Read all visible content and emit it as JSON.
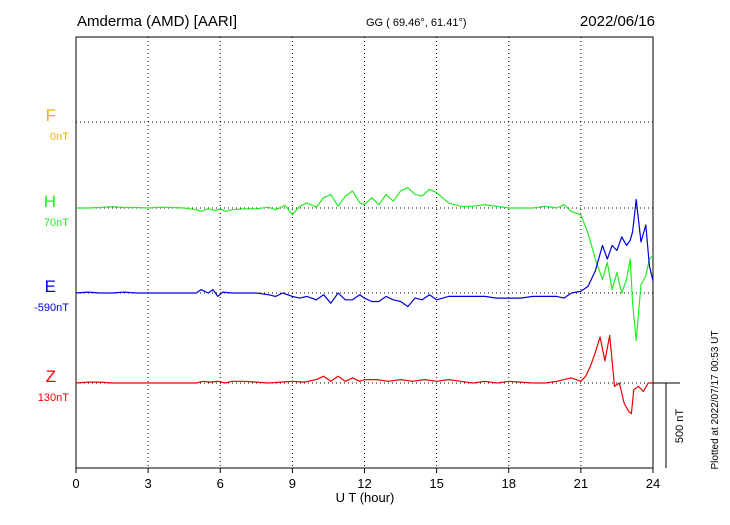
{
  "header": {
    "station": "Amderma (AMD)  [AARI]",
    "coords": "GG ( 69.46°,  61.41°)",
    "date": "2022/06/16"
  },
  "footer": {
    "plotted": "Plotted at 2022/07/17 00:53 UT"
  },
  "colors": {
    "F": "#f0b400",
    "H": "#22ee22",
    "E": "#0000dd",
    "Z": "#ee0000",
    "axis": "#000000"
  },
  "chart_data": {
    "type": "line",
    "xlabel": "U T (hour)",
    "xlim": [
      0,
      24
    ],
    "xticks": [
      0,
      3,
      6,
      9,
      12,
      15,
      18,
      21,
      24
    ],
    "grid": true,
    "scale_bar": {
      "label": "500 nT",
      "value_nT": 500
    },
    "channels": [
      {
        "name": "F",
        "baseline_label": "0nT",
        "color": "#f0b400"
      },
      {
        "name": "H",
        "baseline_label": "70nT",
        "color": "#22ee22"
      },
      {
        "name": "E",
        "baseline_label": "-590nT",
        "color": "#0000dd"
      },
      {
        "name": "Z",
        "baseline_label": "130nT",
        "color": "#ee0000"
      }
    ],
    "series": [
      {
        "name": "H",
        "color": "#22ee22",
        "x": [
          0,
          0.5,
          1,
          1.5,
          2,
          2.5,
          3,
          3.5,
          4,
          4.5,
          5,
          5.2,
          5.5,
          5.8,
          6,
          6.2,
          6.5,
          7,
          7.5,
          8,
          8.3,
          8.7,
          9,
          9.3,
          9.6,
          10,
          10.3,
          10.6,
          10.9,
          11.2,
          11.5,
          11.8,
          12,
          12.3,
          12.6,
          12.9,
          13.2,
          13.5,
          13.8,
          14.1,
          14.4,
          14.7,
          15,
          15.5,
          16,
          16.5,
          17,
          17.5,
          18,
          18.5,
          19,
          19.5,
          20,
          20.3,
          20.6,
          21,
          21.3,
          21.6,
          21.9,
          22.1,
          22.3,
          22.5,
          22.7,
          22.9,
          23.05,
          23.15,
          23.3,
          23.5,
          23.7,
          23.85,
          24
        ],
        "values": [
          0,
          0,
          3,
          8,
          3,
          3,
          0,
          5,
          3,
          0,
          -10,
          -20,
          -5,
          -15,
          -5,
          -20,
          -10,
          -5,
          -5,
          5,
          -10,
          15,
          -40,
          10,
          30,
          5,
          60,
          80,
          10,
          70,
          100,
          30,
          20,
          60,
          20,
          80,
          40,
          100,
          120,
          80,
          70,
          110,
          90,
          30,
          10,
          10,
          20,
          10,
          0,
          0,
          0,
          10,
          0,
          20,
          -20,
          -40,
          -150,
          -300,
          -420,
          -320,
          -480,
          -380,
          -500,
          -420,
          -300,
          -560,
          -780,
          -450,
          -400,
          -300,
          -280
        ]
      },
      {
        "name": "E",
        "color": "#0000dd",
        "x": [
          0,
          0.5,
          1,
          1.5,
          2,
          2.5,
          3,
          3.5,
          4,
          4.5,
          5,
          5.2,
          5.5,
          5.7,
          5.9,
          6.1,
          6.5,
          7,
          7.5,
          8,
          8.3,
          8.6,
          9,
          9.3,
          9.6,
          10,
          10.3,
          10.6,
          10.9,
          11.2,
          11.5,
          11.8,
          12,
          12.3,
          12.6,
          12.9,
          13.2,
          13.5,
          13.8,
          14.1,
          14.4,
          14.7,
          15,
          15.5,
          16,
          16.5,
          17,
          17.5,
          18,
          18.5,
          19,
          19.5,
          20,
          20.3,
          20.6,
          21,
          21.3,
          21.6,
          21.9,
          22.1,
          22.3,
          22.5,
          22.7,
          22.9,
          23.05,
          23.15,
          23.3,
          23.5,
          23.7,
          23.85,
          24
        ],
        "values": [
          0,
          5,
          0,
          0,
          5,
          0,
          0,
          0,
          0,
          0,
          0,
          20,
          0,
          20,
          -20,
          5,
          0,
          0,
          0,
          -10,
          -20,
          0,
          -20,
          -30,
          -20,
          -40,
          -10,
          -60,
          0,
          -40,
          -40,
          -10,
          -30,
          -50,
          -50,
          -20,
          -40,
          -50,
          -80,
          -30,
          -40,
          -10,
          -40,
          -20,
          -20,
          -20,
          -20,
          -30,
          -30,
          -30,
          -20,
          -20,
          -20,
          -30,
          0,
          10,
          40,
          130,
          280,
          200,
          280,
          250,
          330,
          280,
          310,
          360,
          550,
          300,
          400,
          160,
          70
        ]
      },
      {
        "name": "Z",
        "color": "#ee0000",
        "x": [
          0,
          0.5,
          1,
          1.5,
          2,
          2.5,
          3,
          3.5,
          4,
          4.5,
          5,
          5.3,
          5.6,
          5.9,
          6.2,
          6.5,
          7,
          7.5,
          8,
          8.5,
          9,
          9.5,
          10,
          10.3,
          10.6,
          10.9,
          11.2,
          11.5,
          11.8,
          12,
          12.5,
          13,
          13.5,
          14,
          14.5,
          15,
          15.5,
          16,
          16.5,
          17,
          17.5,
          18,
          18.5,
          19,
          19.5,
          20,
          20.3,
          20.6,
          21,
          21.2,
          21.4,
          21.6,
          21.8,
          22,
          22.2,
          22.4,
          22.6,
          22.8,
          23,
          23.1,
          23.2,
          23.4,
          23.6,
          23.8,
          24
        ],
        "values": [
          0,
          5,
          5,
          0,
          0,
          0,
          0,
          0,
          0,
          0,
          0,
          10,
          5,
          10,
          0,
          10,
          10,
          5,
          0,
          5,
          10,
          5,
          20,
          40,
          10,
          40,
          10,
          30,
          10,
          20,
          20,
          10,
          20,
          10,
          20,
          10,
          20,
          10,
          0,
          10,
          0,
          10,
          5,
          0,
          0,
          10,
          20,
          30,
          10,
          40,
          100,
          180,
          270,
          130,
          280,
          -20,
          0,
          -120,
          -170,
          -180,
          -40,
          -20,
          -50,
          0,
          0
        ]
      }
    ]
  }
}
